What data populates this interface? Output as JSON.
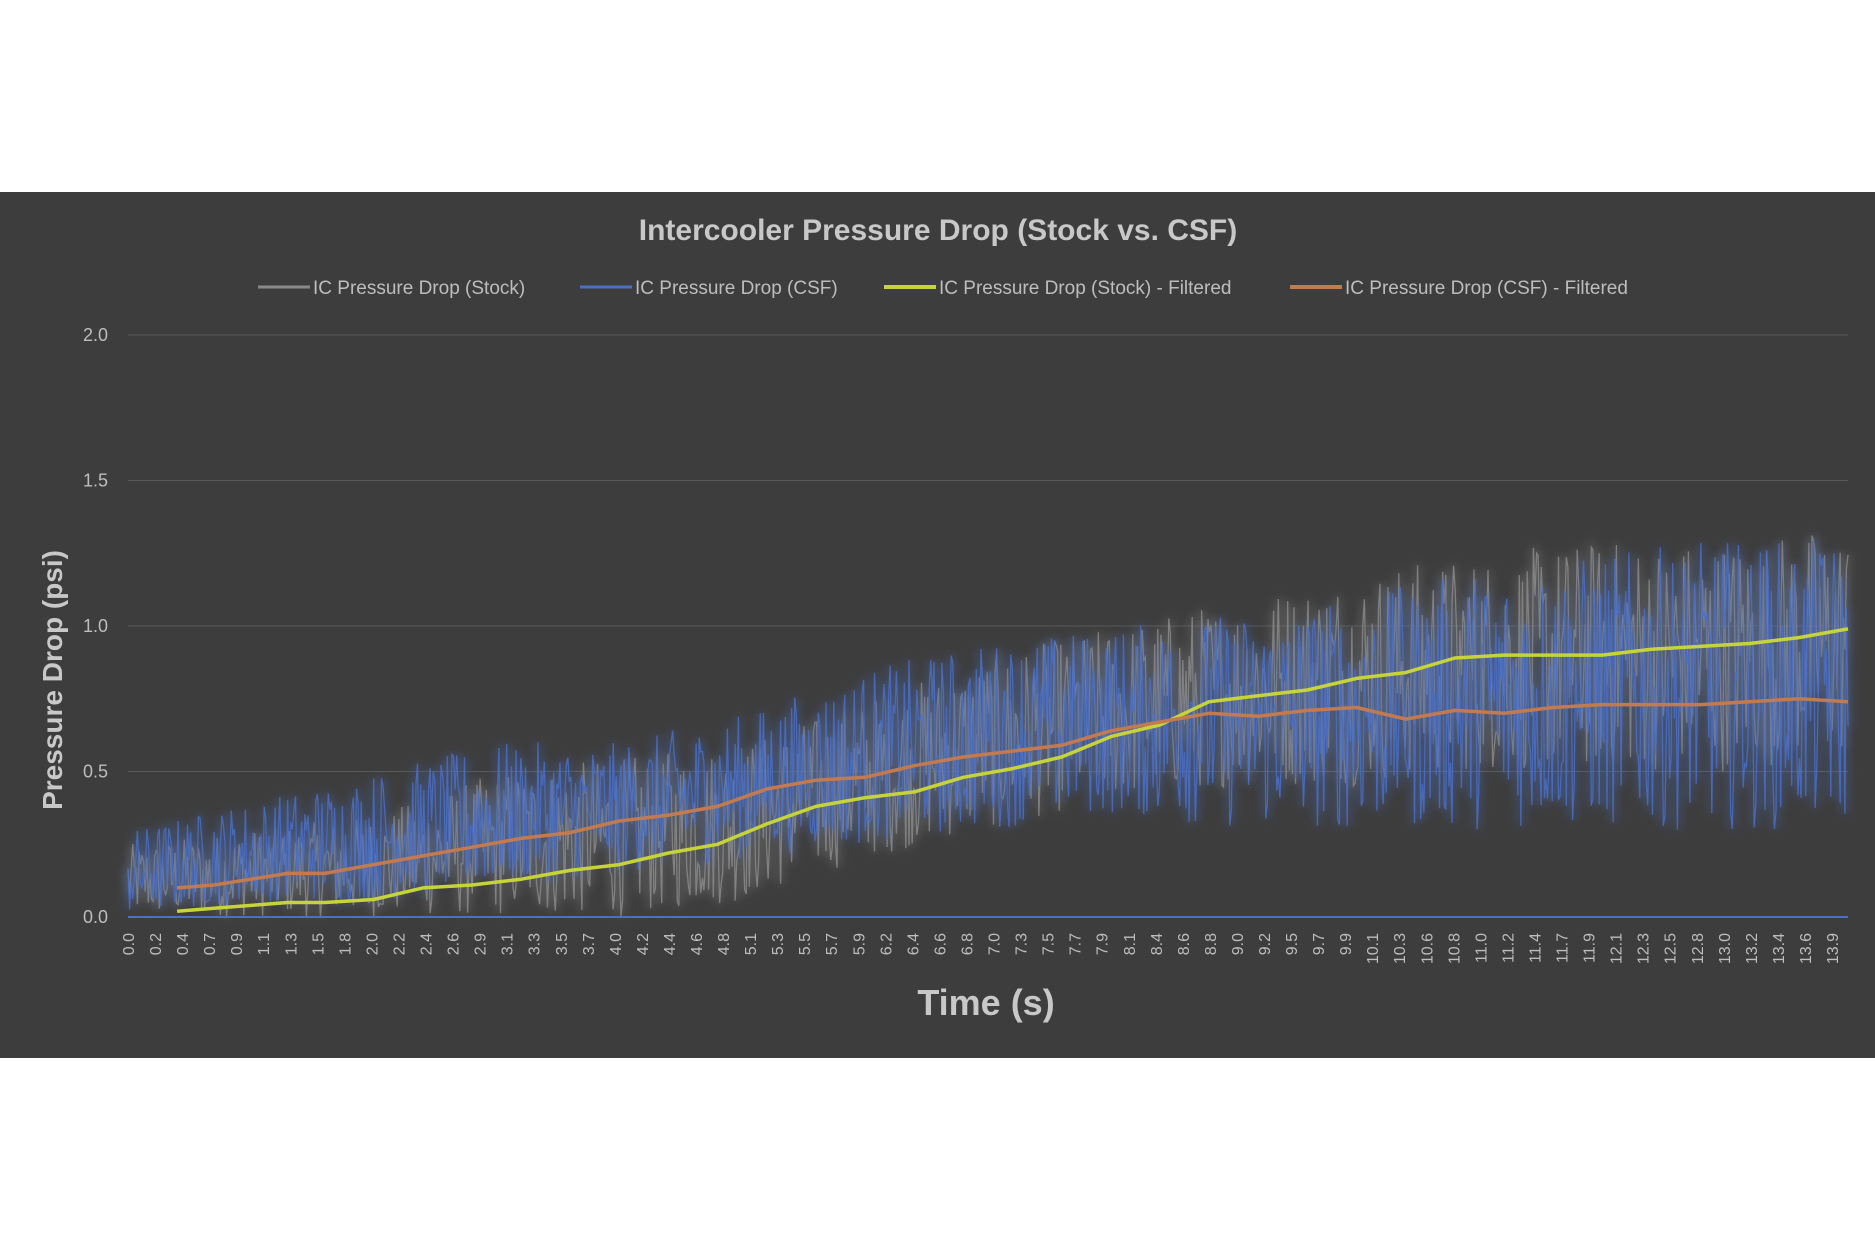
{
  "chart_data": {
    "type": "line",
    "title": "Intercooler Pressure Drop (Stock vs. CSF)",
    "xlabel": "Time (s)",
    "ylabel": "Pressure Drop (psi)",
    "ylim": [
      0,
      2.0
    ],
    "yticks": [
      "0.0",
      "0.5",
      "1.0",
      "1.5",
      "2.0"
    ],
    "grid": true,
    "legend_position": "top",
    "x_tick_labels": [
      "0.0",
      "0.2",
      "0.4",
      "0.7",
      "0.9",
      "1.1",
      "1.3",
      "1.5",
      "1.8",
      "2.0",
      "2.2",
      "2.4",
      "2.6",
      "2.9",
      "3.1",
      "3.3",
      "3.5",
      "3.7",
      "4.0",
      "4.2",
      "4.4",
      "4.6",
      "4.8",
      "5.1",
      "5.3",
      "5.5",
      "5.7",
      "5.9",
      "6.2",
      "6.4",
      "6.6",
      "6.8",
      "7.0",
      "7.3",
      "7.5",
      "7.7",
      "7.9",
      "8.1",
      "8.4",
      "8.6",
      "8.8",
      "9.0",
      "9.2",
      "9.5",
      "9.7",
      "9.9",
      "10.1",
      "10.3",
      "10.6",
      "10.8",
      "11.0",
      "11.2",
      "11.4",
      "11.7",
      "11.9",
      "12.1",
      "12.3",
      "12.5",
      "12.8",
      "13.0",
      "13.2",
      "13.4",
      "13.6",
      "13.9"
    ],
    "xlim": [
      0,
      14.0
    ],
    "series": [
      {
        "name": "IC Pressure Drop (Stock)",
        "color": "#8a8a8a",
        "kind": "noisy",
        "envelope_x": [
          0,
          1,
          2,
          3,
          4,
          5,
          6,
          7,
          8,
          9,
          10,
          11,
          12,
          13,
          14.0
        ],
        "envelope_low": [
          0.0,
          0.0,
          0.0,
          0.0,
          0.0,
          0.05,
          0.2,
          0.3,
          0.4,
          0.45,
          0.45,
          0.5,
          0.5,
          0.5,
          0.55
        ],
        "envelope_high": [
          0.25,
          0.3,
          0.35,
          0.5,
          0.55,
          0.6,
          0.75,
          0.9,
          1.0,
          1.1,
          1.2,
          1.25,
          1.3,
          1.3,
          1.35
        ]
      },
      {
        "name": "IC Pressure Drop (CSF)",
        "color": "#4a6fc4",
        "kind": "noisy",
        "envelope_x": [
          0,
          1,
          2,
          3,
          4,
          5,
          6,
          7,
          8,
          9,
          10,
          11,
          12,
          13,
          14.0
        ],
        "envelope_low": [
          0.0,
          0.05,
          0.05,
          0.1,
          0.15,
          0.2,
          0.25,
          0.3,
          0.35,
          0.3,
          0.3,
          0.3,
          0.3,
          0.3,
          0.3
        ],
        "envelope_high": [
          0.3,
          0.4,
          0.5,
          0.6,
          0.6,
          0.7,
          0.85,
          0.95,
          1.0,
          1.05,
          1.1,
          1.2,
          1.25,
          1.3,
          1.3
        ]
      },
      {
        "name": "IC Pressure Drop (Stock) - Filtered",
        "color": "#c6d43a",
        "kind": "line",
        "x": [
          0.4,
          0.7,
          1.0,
          1.3,
          1.6,
          2.0,
          2.4,
          2.8,
          3.2,
          3.6,
          4.0,
          4.4,
          4.8,
          5.2,
          5.6,
          6.0,
          6.4,
          6.8,
          7.2,
          7.6,
          8.0,
          8.4,
          8.8,
          9.2,
          9.6,
          10.0,
          10.4,
          10.8,
          11.2,
          11.6,
          12.0,
          12.4,
          12.8,
          13.2,
          13.6,
          14.0
        ],
        "y": [
          0.02,
          0.03,
          0.04,
          0.05,
          0.05,
          0.06,
          0.1,
          0.11,
          0.13,
          0.16,
          0.18,
          0.22,
          0.25,
          0.32,
          0.38,
          0.41,
          0.43,
          0.48,
          0.51,
          0.55,
          0.62,
          0.66,
          0.74,
          0.76,
          0.78,
          0.82,
          0.84,
          0.89,
          0.9,
          0.9,
          0.9,
          0.92,
          0.93,
          0.94,
          0.96,
          0.99
        ]
      },
      {
        "name": "IC Pressure Drop (CSF) - Filtered",
        "color": "#c27a50",
        "kind": "line",
        "x": [
          0.4,
          0.7,
          1.0,
          1.3,
          1.6,
          2.0,
          2.4,
          2.8,
          3.2,
          3.6,
          4.0,
          4.4,
          4.8,
          5.2,
          5.6,
          6.0,
          6.4,
          6.8,
          7.2,
          7.6,
          8.0,
          8.4,
          8.8,
          9.2,
          9.6,
          10.0,
          10.4,
          10.8,
          11.2,
          11.6,
          12.0,
          12.4,
          12.8,
          13.2,
          13.6,
          14.0
        ],
        "y": [
          0.1,
          0.11,
          0.13,
          0.15,
          0.15,
          0.18,
          0.21,
          0.24,
          0.27,
          0.29,
          0.33,
          0.35,
          0.38,
          0.44,
          0.47,
          0.48,
          0.52,
          0.55,
          0.57,
          0.59,
          0.64,
          0.67,
          0.7,
          0.69,
          0.71,
          0.72,
          0.68,
          0.71,
          0.7,
          0.72,
          0.73,
          0.73,
          0.73,
          0.74,
          0.75,
          0.74
        ]
      }
    ]
  }
}
